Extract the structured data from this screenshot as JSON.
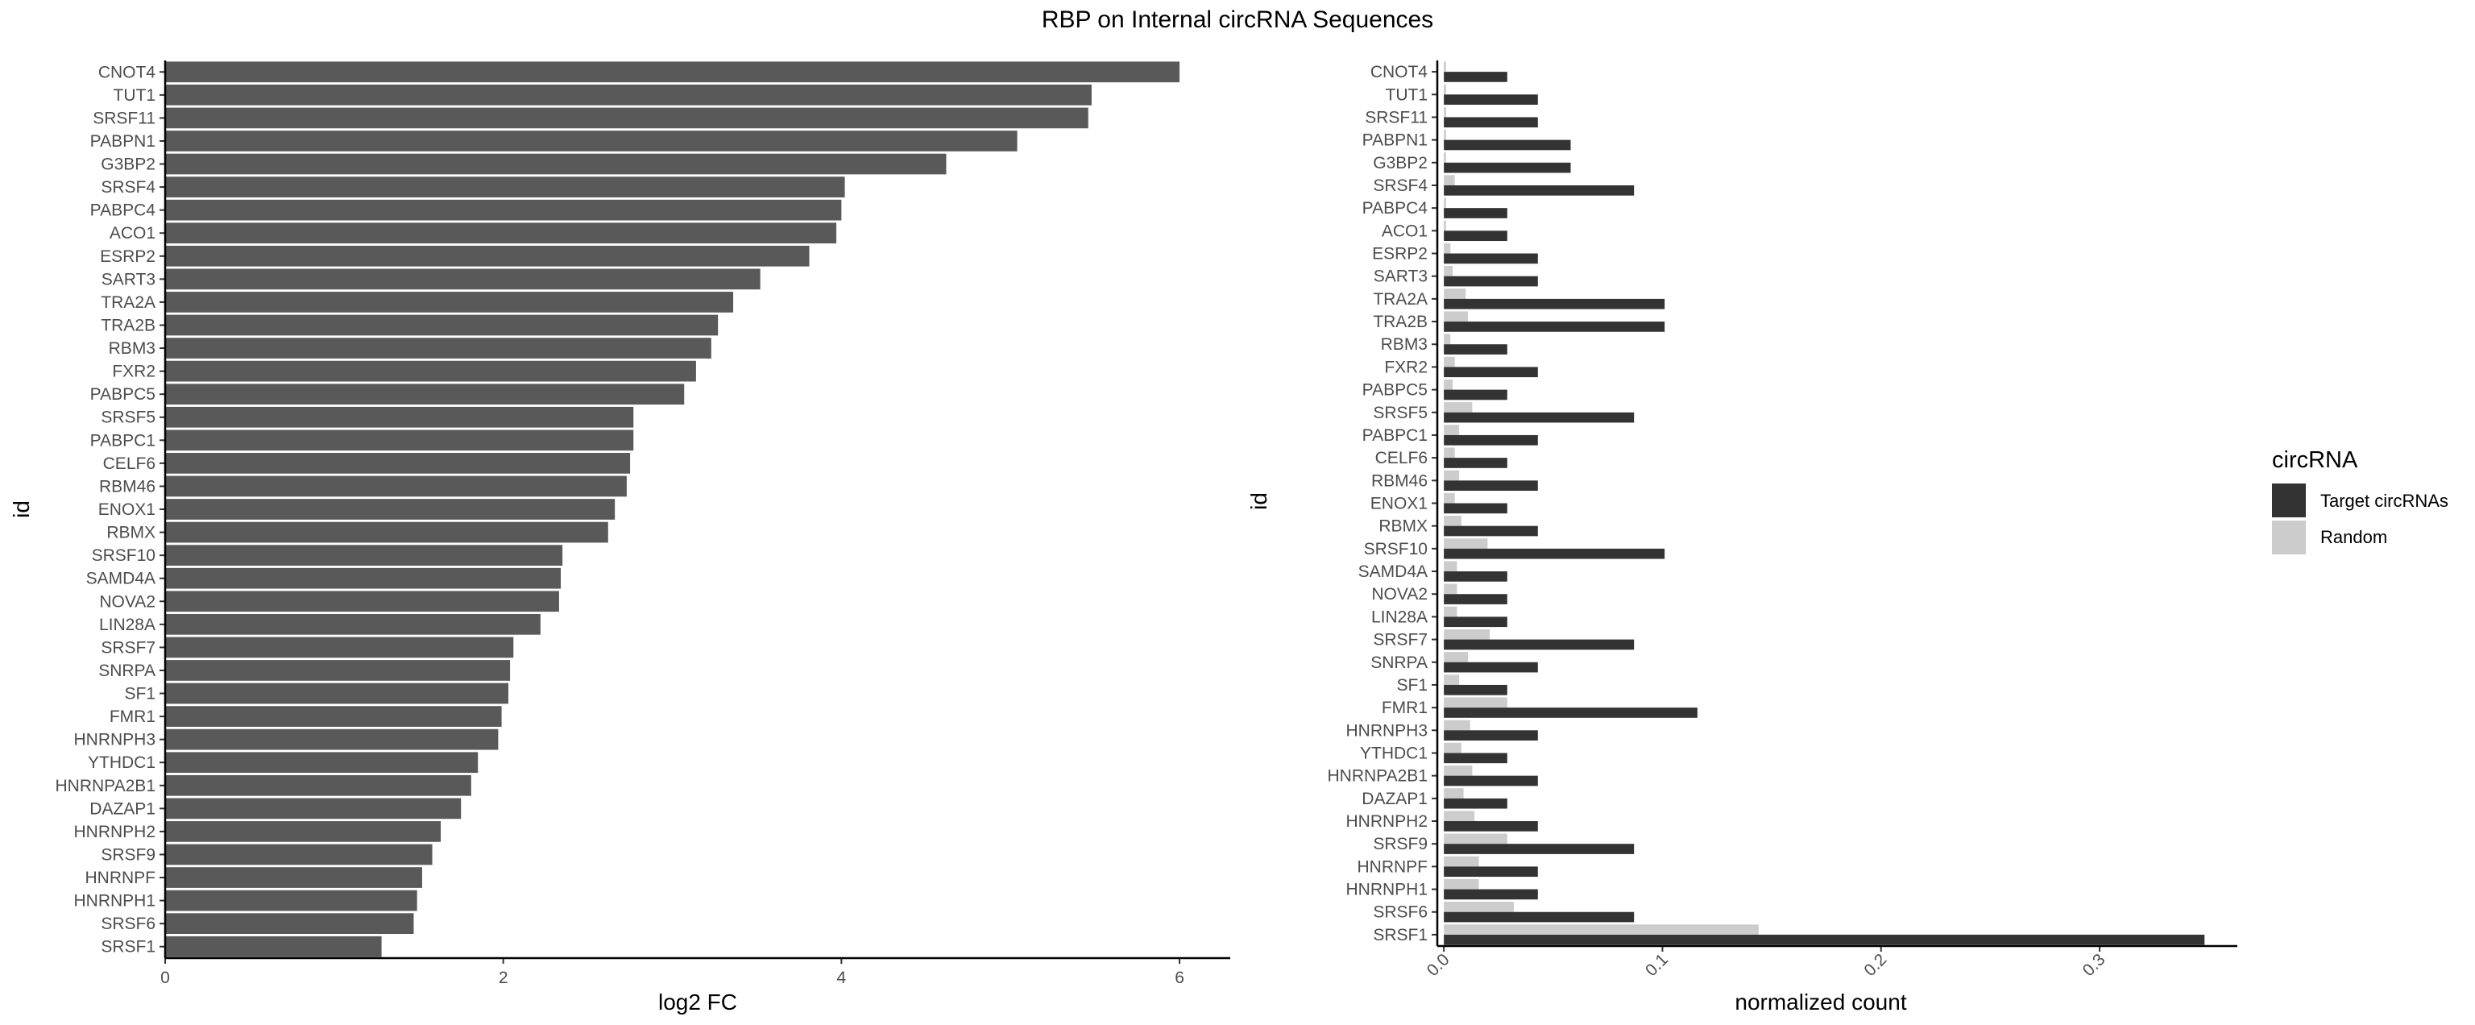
{
  "title": "RBP on Internal circRNA Sequences",
  "colors": {
    "left_bar": "#595959",
    "target": "#333333",
    "random": "#cccccc",
    "axis": "#000000",
    "tick_text": "#4d4d4d"
  },
  "chart_data": [
    {
      "type": "bar",
      "orientation": "horizontal",
      "xlabel": "log2 FC",
      "ylabel": "id",
      "xlim": [
        0,
        6.3
      ],
      "xticks": [
        0,
        2,
        4,
        6
      ],
      "grid": false,
      "categories": [
        "CNOT4",
        "TUT1",
        "SRSF11",
        "PABPN1",
        "G3BP2",
        "SRSF4",
        "PABPC4",
        "ACO1",
        "ESRP2",
        "SART3",
        "TRA2A",
        "TRA2B",
        "RBM3",
        "FXR2",
        "PABPC5",
        "SRSF5",
        "PABPC1",
        "CELF6",
        "RBM46",
        "ENOX1",
        "RBMX",
        "SRSF10",
        "SAMD4A",
        "NOVA2",
        "LIN28A",
        "SRSF7",
        "SNRPA",
        "SF1",
        "FMR1",
        "HNRNPH3",
        "YTHDC1",
        "HNRNPA2B1",
        "DAZAP1",
        "HNRNPH2",
        "SRSF9",
        "HNRNPF",
        "HNRNPH1",
        "SRSF6",
        "SRSF1"
      ],
      "values": [
        6.0,
        5.48,
        5.46,
        5.04,
        4.62,
        4.02,
        4.0,
        3.97,
        3.81,
        3.52,
        3.36,
        3.27,
        3.23,
        3.14,
        3.07,
        2.77,
        2.77,
        2.75,
        2.73,
        2.66,
        2.62,
        2.35,
        2.34,
        2.33,
        2.22,
        2.06,
        2.04,
        2.03,
        1.99,
        1.97,
        1.85,
        1.81,
        1.75,
        1.63,
        1.58,
        1.52,
        1.49,
        1.47,
        1.28
      ]
    },
    {
      "type": "bar",
      "orientation": "horizontal",
      "grouped": true,
      "xlabel": "normalized count",
      "ylabel": "id",
      "xlim": [
        -0.003,
        0.363
      ],
      "xticks": [
        0.0,
        0.1,
        0.2,
        0.3
      ],
      "xtick_labels": [
        "0.0",
        "0.1",
        "0.2",
        "0.3"
      ],
      "grid": false,
      "categories": [
        "CNOT4",
        "TUT1",
        "SRSF11",
        "PABPN1",
        "G3BP2",
        "SRSF4",
        "PABPC4",
        "ACO1",
        "ESRP2",
        "SART3",
        "TRA2A",
        "TRA2B",
        "RBM3",
        "FXR2",
        "PABPC5",
        "SRSF5",
        "PABPC1",
        "CELF6",
        "RBM46",
        "ENOX1",
        "RBMX",
        "SRSF10",
        "SAMD4A",
        "NOVA2",
        "LIN28A",
        "SRSF7",
        "SNRPA",
        "SF1",
        "FMR1",
        "HNRNPH3",
        "YTHDC1",
        "HNRNPA2B1",
        "DAZAP1",
        "HNRNPH2",
        "SRSF9",
        "HNRNPF",
        "HNRNPH1",
        "SRSF6",
        "SRSF1"
      ],
      "series": [
        {
          "name": "Target circRNAs",
          "values": [
            0.029,
            0.043,
            0.043,
            0.058,
            0.058,
            0.087,
            0.029,
            0.029,
            0.043,
            0.043,
            0.101,
            0.101,
            0.029,
            0.043,
            0.029,
            0.087,
            0.043,
            0.029,
            0.043,
            0.029,
            0.043,
            0.101,
            0.029,
            0.029,
            0.029,
            0.087,
            0.043,
            0.029,
            0.116,
            0.043,
            0.029,
            0.043,
            0.029,
            0.043,
            0.087,
            0.043,
            0.043,
            0.087,
            0.348
          ]
        },
        {
          "name": "Random",
          "values": [
            0.001,
            0.001,
            0.001,
            0.001,
            0.001,
            0.005,
            0.001,
            0.001,
            0.003,
            0.004,
            0.01,
            0.011,
            0.003,
            0.005,
            0.004,
            0.013,
            0.007,
            0.005,
            0.007,
            0.005,
            0.008,
            0.02,
            0.006,
            0.006,
            0.006,
            0.021,
            0.011,
            0.007,
            0.029,
            0.012,
            0.008,
            0.013,
            0.009,
            0.014,
            0.029,
            0.016,
            0.016,
            0.032,
            0.144
          ]
        }
      ],
      "legend": {
        "title": "circRNA",
        "position": "right"
      }
    }
  ]
}
